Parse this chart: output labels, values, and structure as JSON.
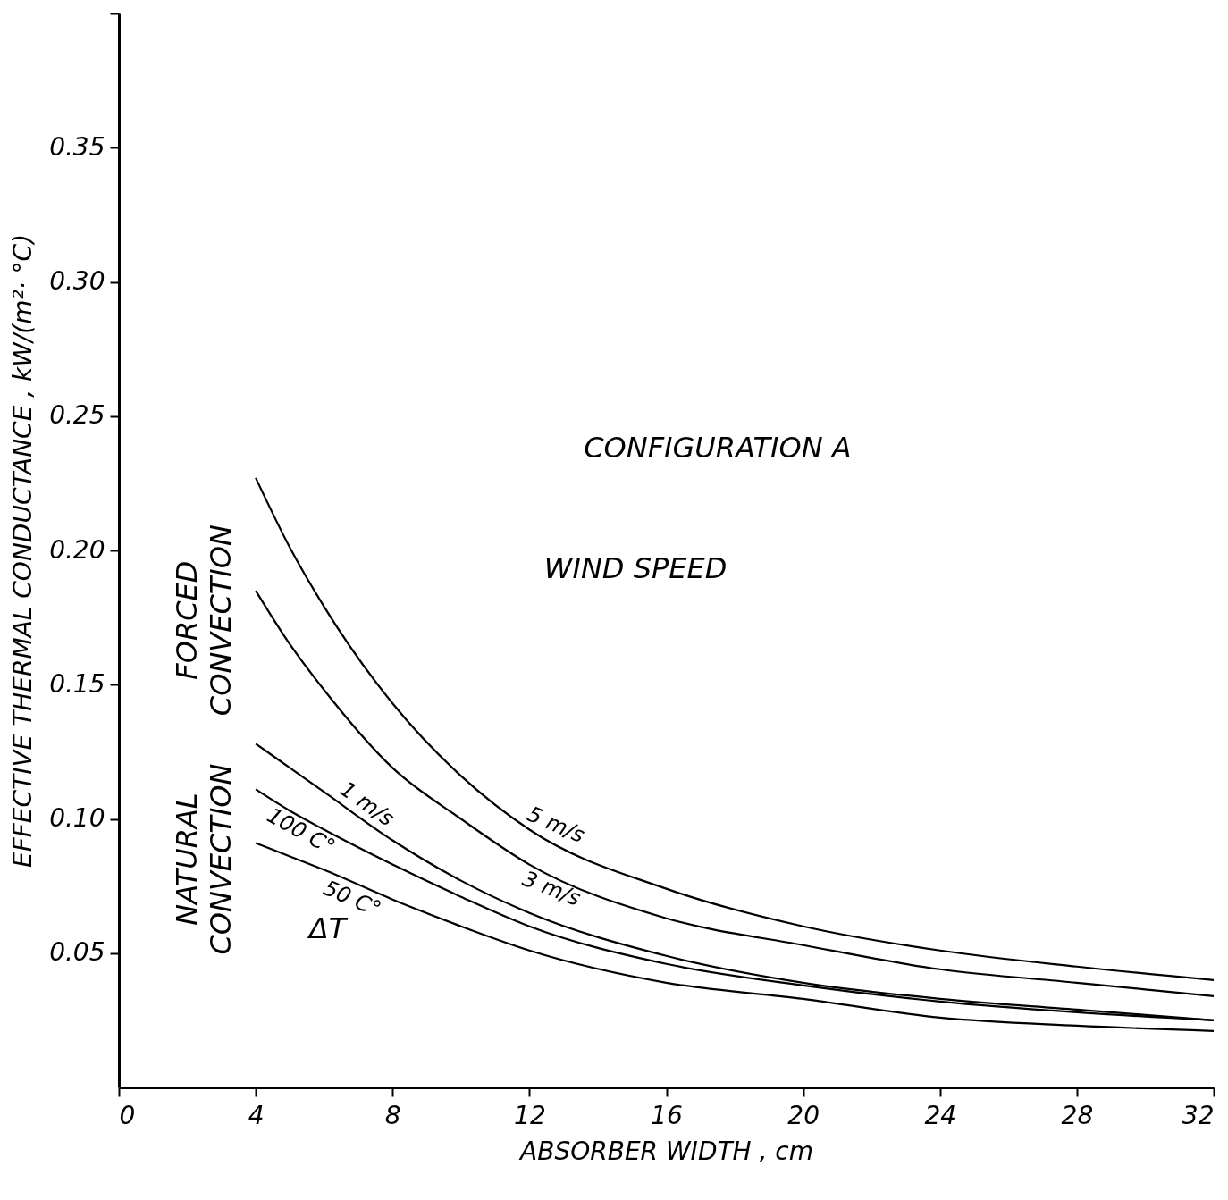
{
  "chart_data": {
    "type": "line",
    "xlabel": "ABSORBER WIDTH , cm",
    "ylabel": "EFFECTIVE THERMAL CONDUCTANCE , kW/(m²· °C)",
    "x": [
      4,
      5,
      6,
      8,
      10,
      12,
      16,
      20,
      24,
      28,
      32
    ],
    "series": [
      {
        "name": "5 m/s",
        "color": "#000000",
        "values": [
          0.227,
          0.201,
          0.179,
          0.143,
          0.116,
          0.096,
          0.074,
          0.06,
          0.051,
          0.045,
          0.04
        ]
      },
      {
        "name": "3 m/s",
        "color": "#000000",
        "values": [
          0.185,
          0.165,
          0.148,
          0.119,
          0.1,
          0.083,
          0.063,
          0.053,
          0.044,
          0.039,
          0.034
        ]
      },
      {
        "name": "1 m/s",
        "color": "#000000",
        "values": [
          0.128,
          0.119,
          0.11,
          0.092,
          0.077,
          0.065,
          0.049,
          0.039,
          0.033,
          0.029,
          0.025
        ]
      },
      {
        "name": "100 C°",
        "color": "#000000",
        "values": [
          0.111,
          0.103,
          0.096,
          0.083,
          0.071,
          0.06,
          0.046,
          0.038,
          0.032,
          0.028,
          0.025
        ]
      },
      {
        "name": "50 C°",
        "color": "#000000",
        "values": [
          0.091,
          0.086,
          0.081,
          0.07,
          0.06,
          0.051,
          0.039,
          0.033,
          0.026,
          0.023,
          0.021
        ]
      }
    ],
    "xlim": [
      0,
      32
    ],
    "xticks": [
      0,
      4,
      8,
      12,
      16,
      20,
      24,
      28,
      32
    ],
    "ylim": [
      0,
      0.4
    ],
    "yticks": [
      {
        "value": 0.05,
        "label": "0.05"
      },
      {
        "value": 0.1,
        "label": "0.10"
      },
      {
        "value": 0.15,
        "label": "0.15"
      },
      {
        "value": 0.2,
        "label": "0.20"
      },
      {
        "value": 0.25,
        "label": "0.25"
      },
      {
        "value": 0.3,
        "label": "0.30"
      },
      {
        "value": 0.35,
        "label": "0.35"
      },
      {
        "value": 0.4,
        "label": null
      }
    ],
    "annotations": [
      "CONFIGURATION A",
      "WIND SPEED",
      "ΔT",
      "FORCED CONVECTION",
      "NATURAL CONVECTION"
    ],
    "marker": "none",
    "line_style": "solid"
  }
}
